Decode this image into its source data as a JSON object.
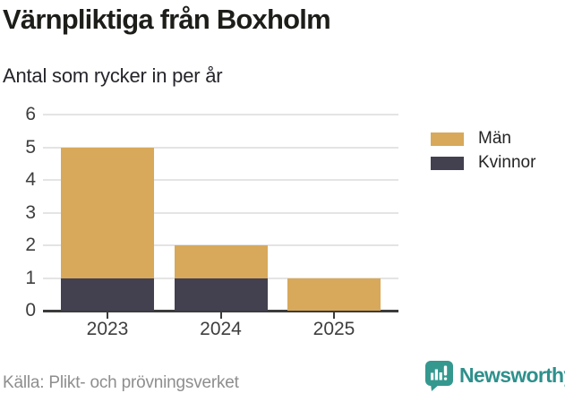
{
  "chart_data": {
    "type": "bar",
    "stacked": true,
    "title": "Värnpliktiga från Boxholm",
    "subtitle": "Antal som rycker in per år",
    "categories": [
      "2023",
      "2024",
      "2025"
    ],
    "series": [
      {
        "name": "Män",
        "color": "#D8A95A",
        "values": [
          4,
          1,
          1
        ]
      },
      {
        "name": "Kvinnor",
        "color": "#434050",
        "values": [
          1,
          1,
          0
        ]
      }
    ],
    "totals": [
      5,
      2,
      1
    ],
    "xlabel": "",
    "ylabel": "",
    "ylim": [
      0,
      6
    ],
    "yticks": [
      0,
      1,
      2,
      3,
      4,
      5,
      6
    ],
    "grid": true,
    "legend_position": "right"
  },
  "footer": {
    "source": "Källa: Plikt- och prövningsverket",
    "brand": "Newsworthy"
  },
  "colors": {
    "men": "#D8A95A",
    "women": "#434050",
    "grid": "#E4E4E4",
    "axis": "#3B3B3B",
    "brand_icon": "#35988F",
    "brand_text": "#2E908C"
  }
}
